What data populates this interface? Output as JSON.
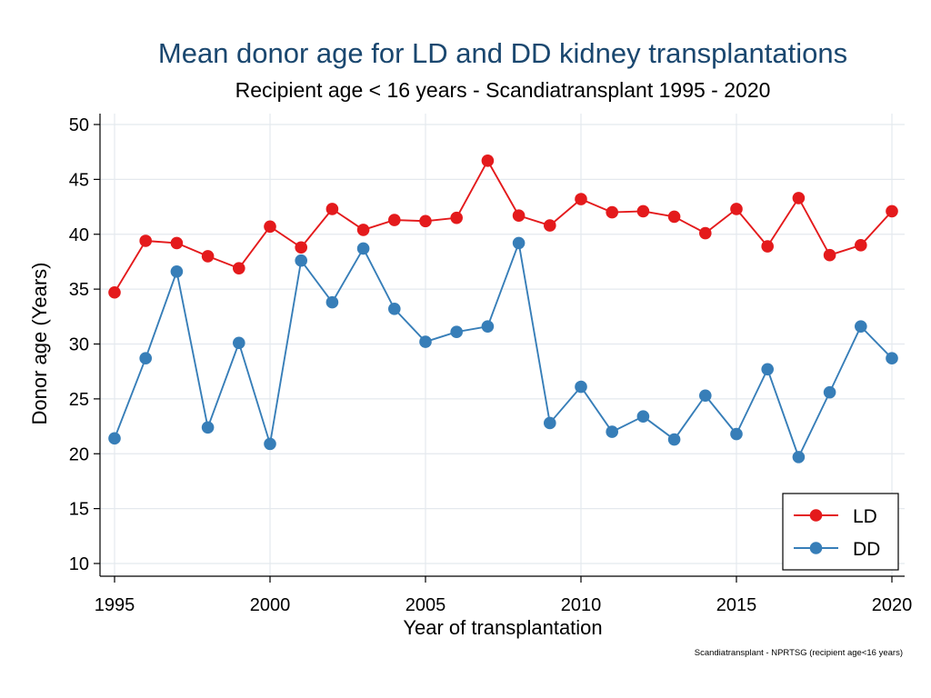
{
  "chart_data": {
    "type": "line",
    "title": "Mean donor age for LD and DD kidney transplantations",
    "subtitle": "Recipient age < 16 years - Scandiatransplant 1995 - 2020",
    "xlabel": "Year of transplantation",
    "ylabel": "Donor age (Years)",
    "note": "Scandiatransplant - NPRTSG (recipient age<16 years)",
    "xlim": [
      1995,
      2020
    ],
    "ylim": [
      10,
      50
    ],
    "x_ticks": [
      "1995",
      "2000",
      "2005",
      "2010",
      "2015",
      "2020"
    ],
    "y_ticks": [
      "10",
      "15",
      "20",
      "25",
      "30",
      "35",
      "40",
      "45",
      "50"
    ],
    "grid": true,
    "legend_position": "bottom-right",
    "x": [
      1995,
      1996,
      1997,
      1998,
      1999,
      2000,
      2001,
      2002,
      2003,
      2004,
      2005,
      2006,
      2007,
      2008,
      2009,
      2010,
      2011,
      2012,
      2013,
      2014,
      2015,
      2016,
      2017,
      2018,
      2019,
      2020
    ],
    "series": [
      {
        "name": "LD",
        "color": "#e41a1c",
        "values": [
          34.7,
          39.4,
          39.2,
          38.0,
          36.9,
          40.7,
          38.8,
          42.3,
          40.4,
          41.3,
          41.2,
          41.5,
          46.7,
          41.7,
          40.8,
          43.2,
          42.0,
          42.1,
          41.6,
          40.1,
          42.3,
          38.9,
          43.3,
          38.1,
          39.0,
          42.1
        ]
      },
      {
        "name": "DD",
        "color": "#377eb8",
        "values": [
          21.4,
          28.7,
          36.6,
          22.4,
          30.1,
          20.9,
          37.6,
          33.8,
          38.7,
          33.2,
          30.2,
          31.1,
          31.6,
          39.2,
          22.8,
          26.1,
          22.0,
          23.4,
          21.3,
          25.3,
          21.8,
          27.7,
          19.7,
          25.6,
          31.6,
          28.7
        ]
      }
    ]
  }
}
